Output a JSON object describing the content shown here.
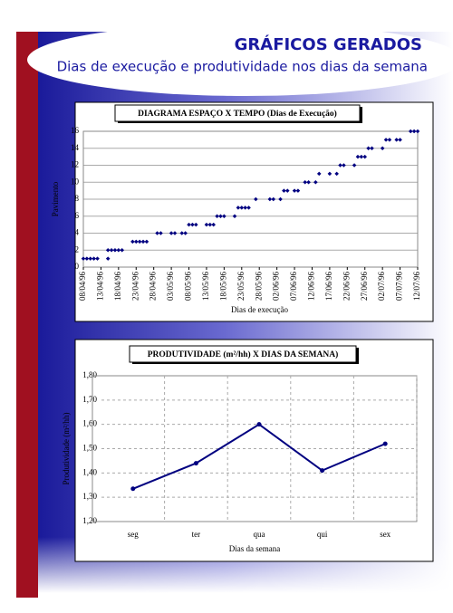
{
  "header": {
    "title": "GRÁFICOS GERADOS",
    "subtitle": "Dias de execução e produtividade nos dias da semana"
  },
  "chart_data": [
    {
      "type": "scatter",
      "title": "DIAGRAMA ESPAÇO X TEMPO (Dias de Execução)",
      "x_label": "Dias de execução",
      "y_label": "Pavimento",
      "color": "#000080",
      "grid": true,
      "xlim": [
        "1996-04-08",
        "1996-07-12"
      ],
      "xticks": [
        {
          "value": "1996-04-08",
          "label": "08/04/96"
        },
        {
          "value": "1996-04-13",
          "label": "13/04/96"
        },
        {
          "value": "1996-04-18",
          "label": "18/04/96"
        },
        {
          "value": "1996-04-23",
          "label": "23/04/96"
        },
        {
          "value": "1996-04-28",
          "label": "28/04/96"
        },
        {
          "value": "1996-05-03",
          "label": "03/05/96"
        },
        {
          "value": "1996-05-08",
          "label": "08/05/96"
        },
        {
          "value": "1996-05-13",
          "label": "13/05/96"
        },
        {
          "value": "1996-05-18",
          "label": "18/05/96"
        },
        {
          "value": "1996-05-23",
          "label": "23/05/96"
        },
        {
          "value": "1996-05-28",
          "label": "28/05/96"
        },
        {
          "value": "1996-06-02",
          "label": "02/06/96"
        },
        {
          "value": "1996-06-07",
          "label": "07/06/96"
        },
        {
          "value": "1996-06-12",
          "label": "12/06/96"
        },
        {
          "value": "1996-06-17",
          "label": "17/06/96"
        },
        {
          "value": "1996-06-22",
          "label": "22/06/96"
        },
        {
          "value": "1996-06-27",
          "label": "27/06/96"
        },
        {
          "value": "1996-07-02",
          "label": "02/07/96"
        },
        {
          "value": "1996-07-07",
          "label": "07/07/96"
        },
        {
          "value": "1996-07-12",
          "label": "12/07/96"
        }
      ],
      "ylim": [
        0,
        16
      ],
      "yticks": [
        0,
        2,
        4,
        6,
        8,
        10,
        12,
        14,
        16
      ],
      "x": [
        "1996-04-08",
        "1996-04-09",
        "1996-04-10",
        "1996-04-11",
        "1996-04-12",
        "1996-04-15",
        "1996-04-15",
        "1996-04-16",
        "1996-04-17",
        "1996-04-18",
        "1996-04-19",
        "1996-04-22",
        "1996-04-23",
        "1996-04-24",
        "1996-04-25",
        "1996-04-26",
        "1996-04-29",
        "1996-04-30",
        "1996-05-03",
        "1996-05-04",
        "1996-05-06",
        "1996-05-07",
        "1996-05-08",
        "1996-05-09",
        "1996-05-10",
        "1996-05-13",
        "1996-05-14",
        "1996-05-15",
        "1996-05-16",
        "1996-05-17",
        "1996-05-18",
        "1996-05-21",
        "1996-05-22",
        "1996-05-23",
        "1996-05-24",
        "1996-05-25",
        "1996-05-27",
        "1996-05-31",
        "1996-06-01",
        "1996-06-03",
        "1996-06-04",
        "1996-06-05",
        "1996-06-07",
        "1996-06-08",
        "1996-06-10",
        "1996-06-11",
        "1996-06-13",
        "1996-06-14",
        "1996-06-17",
        "1996-06-19",
        "1996-06-20",
        "1996-06-21",
        "1996-06-24",
        "1996-06-25",
        "1996-06-26",
        "1996-06-27",
        "1996-06-28",
        "1996-06-29",
        "1996-07-02",
        "1996-07-03",
        "1996-07-04",
        "1996-07-06",
        "1996-07-07",
        "1996-07-10",
        "1996-07-11",
        "1996-07-12"
      ],
      "values": [
        1,
        1,
        1,
        1,
        1,
        1,
        2,
        2,
        2,
        2,
        2,
        3,
        3,
        3,
        3,
        3,
        4,
        4,
        4,
        4,
        4,
        4,
        5,
        5,
        5,
        5,
        5,
        5,
        6,
        6,
        6,
        6,
        7,
        7,
        7,
        7,
        8,
        8,
        8,
        8,
        9,
        9,
        9,
        9,
        10,
        10,
        10,
        11,
        11,
        11,
        12,
        12,
        12,
        13,
        13,
        13,
        14,
        14,
        14,
        15,
        15,
        15,
        15,
        16,
        16,
        16
      ]
    },
    {
      "type": "line",
      "title": "PRODUTIVIDADE (m²/hh) X DIAS DA SEMANA)",
      "x_label": "Dias da semana",
      "y_label": "Produtividade (m²/hh)",
      "color": "#000080",
      "grid": true,
      "categories": [
        "seg",
        "ter",
        "qua",
        "qui",
        "sex"
      ],
      "values": [
        1.335,
        1.44,
        1.6,
        1.41,
        1.52
      ],
      "ylim": [
        1.2,
        1.8
      ],
      "yticks": [
        {
          "value": 1.2,
          "label": "1,20"
        },
        {
          "value": 1.3,
          "label": "1,30"
        },
        {
          "value": 1.4,
          "label": "1,40"
        },
        {
          "value": 1.5,
          "label": "1,50"
        },
        {
          "value": 1.6,
          "label": "1,60"
        },
        {
          "value": 1.7,
          "label": "1,70"
        },
        {
          "value": 1.8,
          "label": "1,80"
        }
      ]
    }
  ]
}
